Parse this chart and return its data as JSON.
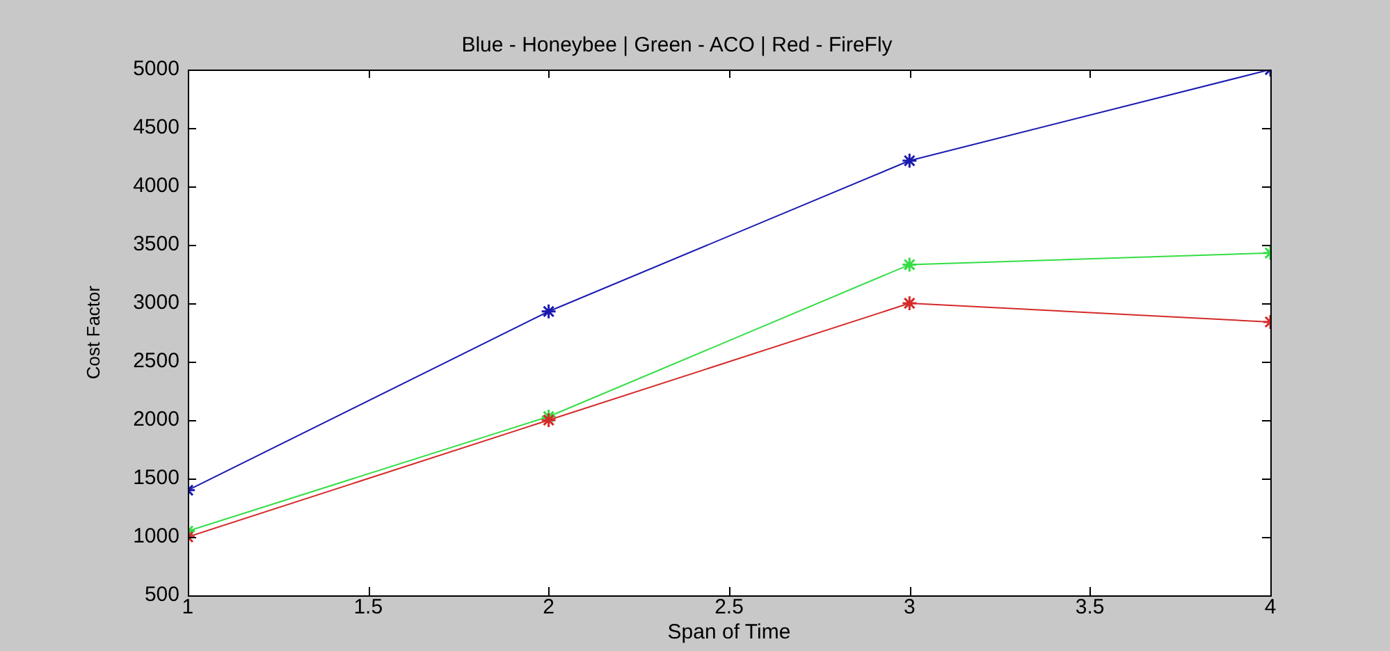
{
  "chart_data": {
    "type": "line",
    "title": "Blue - Honeybee | Green - ACO | Red - FireFly",
    "xlabel": "Span of Time",
    "ylabel": "Cost Factor",
    "x": [
      1,
      2,
      3,
      4
    ],
    "series": [
      {
        "color": "#1a1ab0",
        "values": [
          1400,
          2930,
          4220,
          5000
        ]
      },
      {
        "color": "#33dd44",
        "values": [
          1050,
          2030,
          3330,
          3430
        ]
      },
      {
        "color": "#d42a2a",
        "values": [
          1000,
          2000,
          3000,
          2840
        ]
      }
    ],
    "xlim": [
      1,
      4
    ],
    "xticks": [
      1,
      1.5,
      2,
      2.5,
      3,
      3.5,
      4
    ],
    "ylim": [
      500,
      5000
    ],
    "yticks": [
      500,
      1000,
      1500,
      2000,
      2500,
      3000,
      3500,
      4000,
      4500,
      5000
    ],
    "grid": false,
    "legend": false,
    "marker": "cross",
    "line_style": "solid"
  }
}
